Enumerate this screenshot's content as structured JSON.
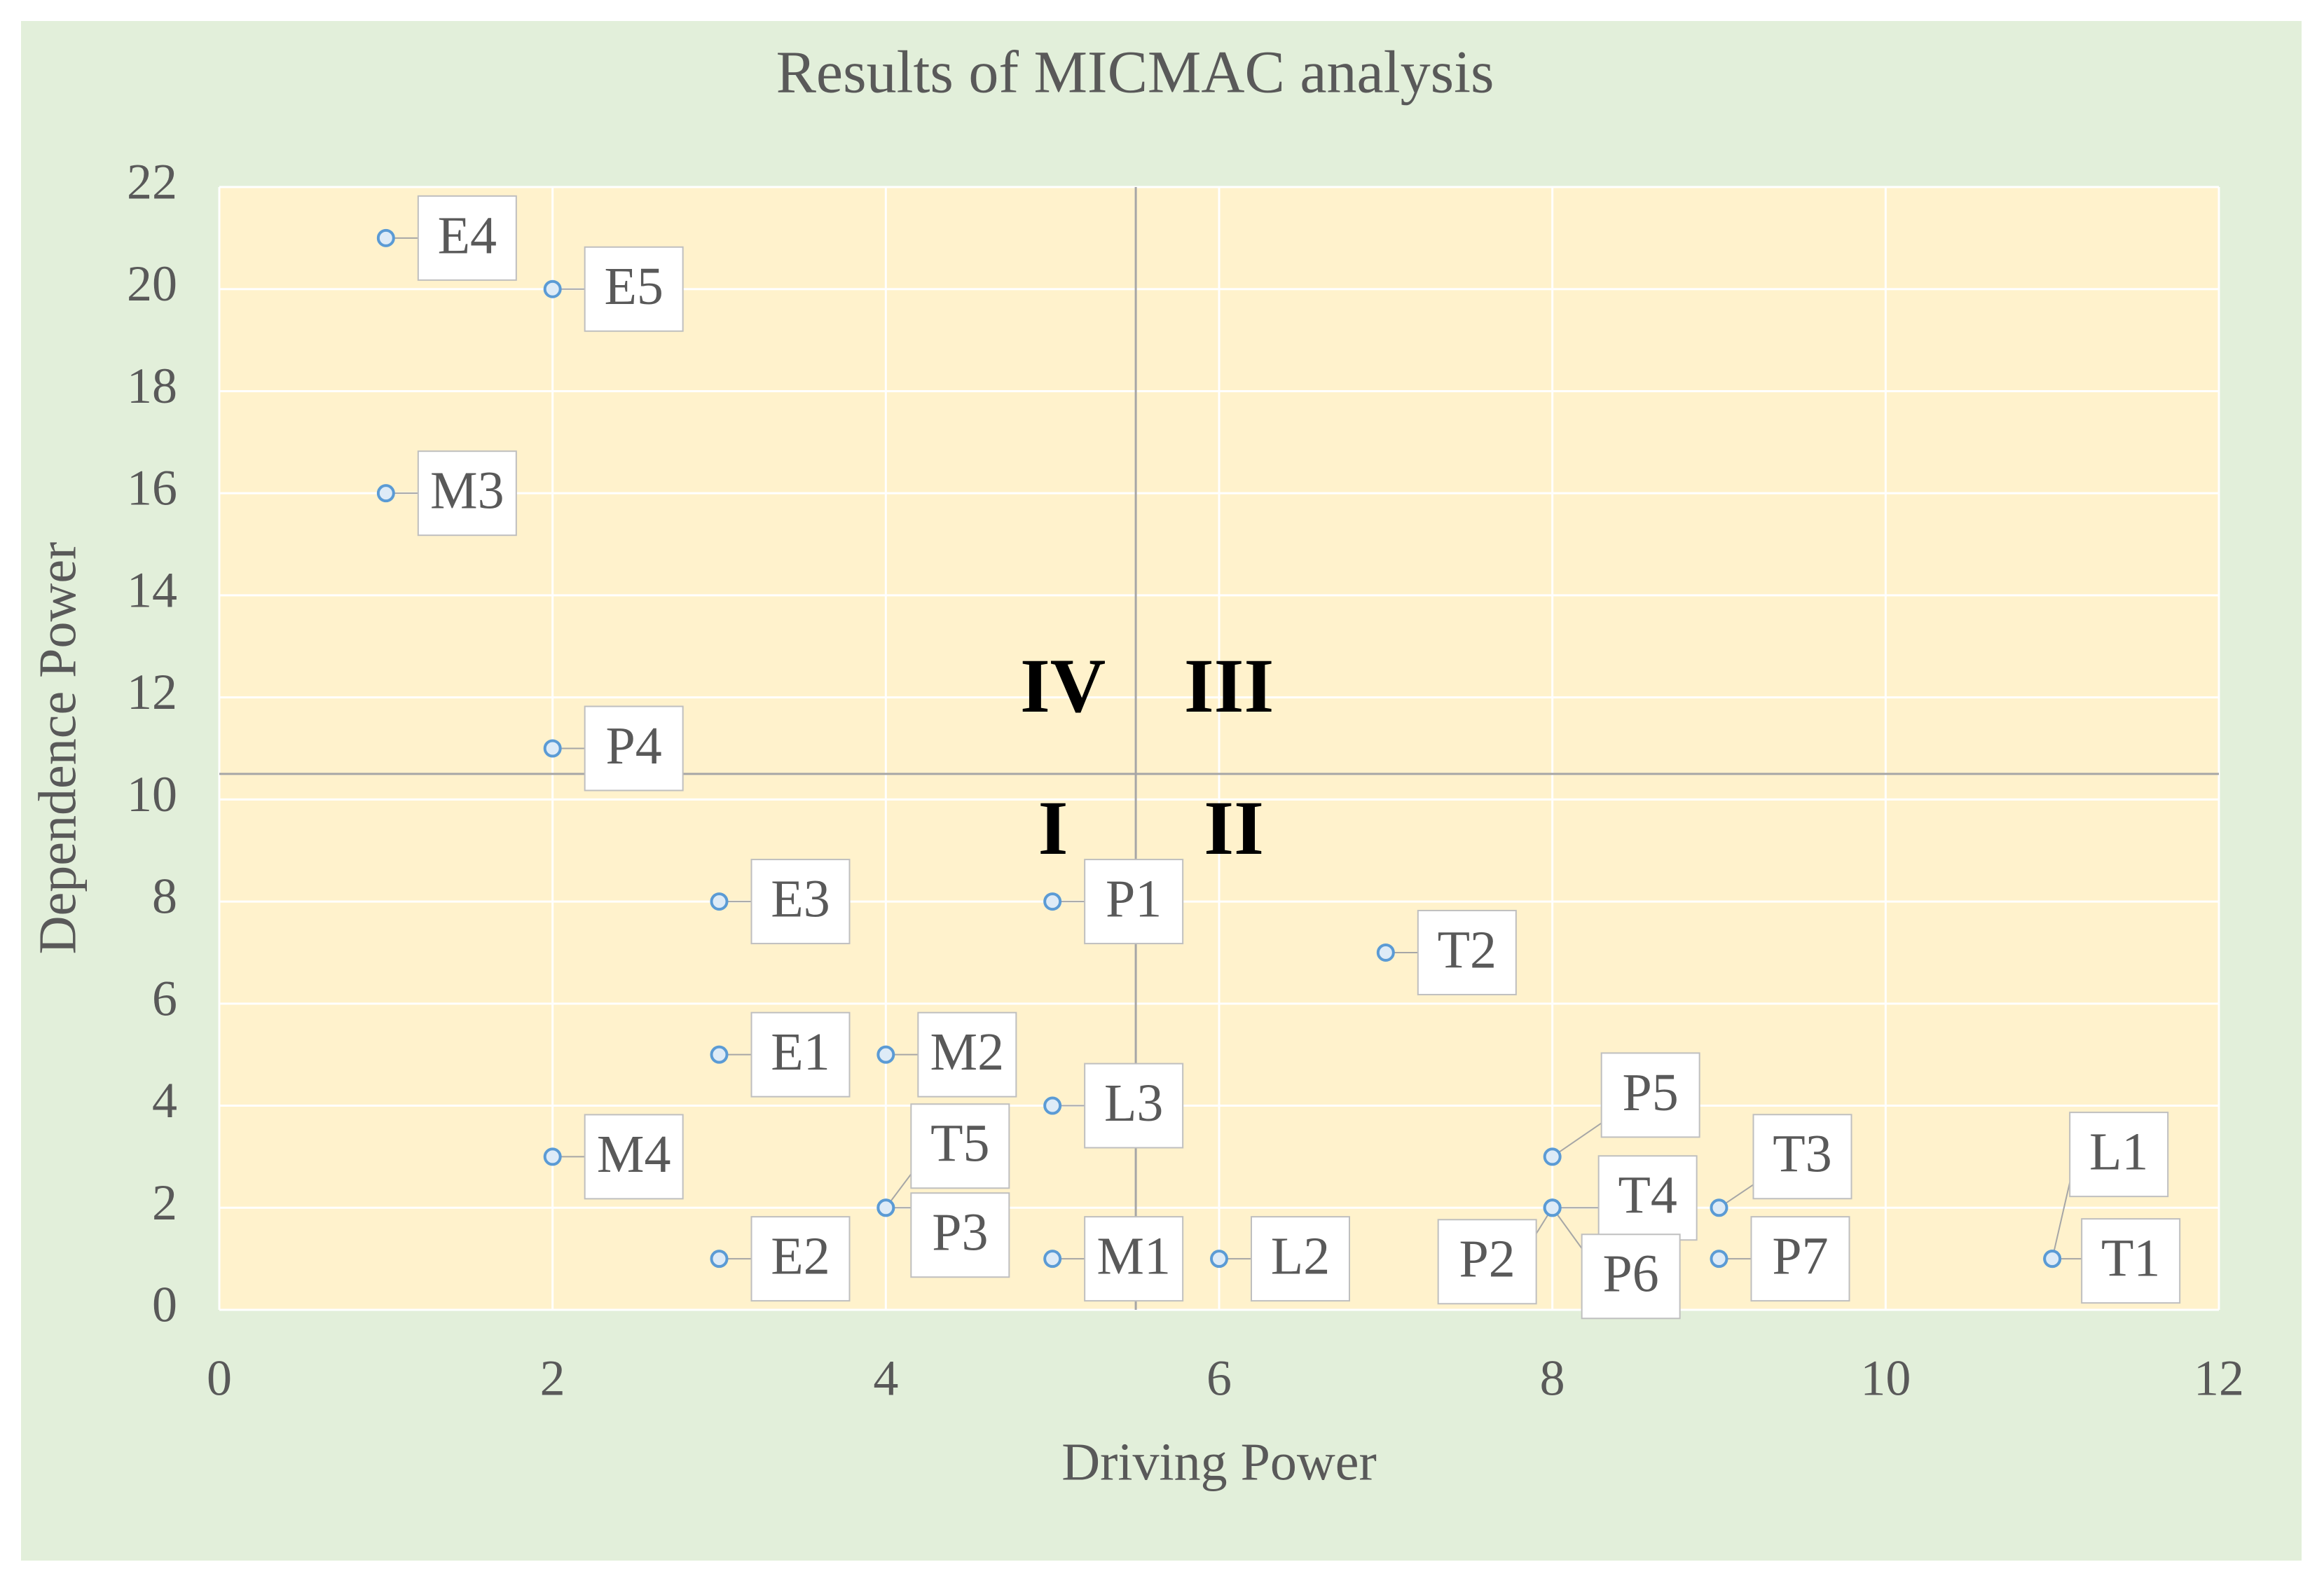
{
  "chart_data": {
    "type": "scatter",
    "title": "Results of MICMAC analysis",
    "x_label": "Driving Power",
    "y_label": "Dependence Power",
    "labels": [
      "E4",
      "E5",
      "M3",
      "P4",
      "E3",
      "P1",
      "T2",
      "E1",
      "M2",
      "L3",
      "M4",
      "P5",
      "T5",
      "P3",
      "T4",
      "P2",
      "P6",
      "T3",
      "E2",
      "M1",
      "L2",
      "P7",
      "L1",
      "T1"
    ],
    "x": [
      1,
      2,
      1,
      2,
      3,
      5,
      7,
      3,
      4,
      5,
      2,
      8,
      4,
      4,
      8,
      8,
      8,
      9,
      3,
      5,
      6,
      9,
      11,
      11
    ],
    "y": [
      21,
      20,
      16,
      11,
      8,
      8,
      7,
      5,
      5,
      4,
      3,
      3,
      2,
      2,
      2,
      2,
      2,
      2,
      1,
      1,
      1,
      1,
      1,
      1
    ],
    "color": "#5b9bd5",
    "xlim": [
      0,
      12
    ],
    "xticks": [
      0,
      2,
      4,
      6,
      8,
      10,
      12
    ],
    "ylim": [
      0,
      22
    ],
    "yticks": [
      0,
      2,
      4,
      6,
      8,
      10,
      12,
      14,
      16,
      18,
      20,
      22
    ],
    "grid": true,
    "divider_x": 5.5,
    "divider_y": 10.5,
    "quadrant_labels": [
      "IV",
      "III",
      "I",
      "II"
    ]
  }
}
